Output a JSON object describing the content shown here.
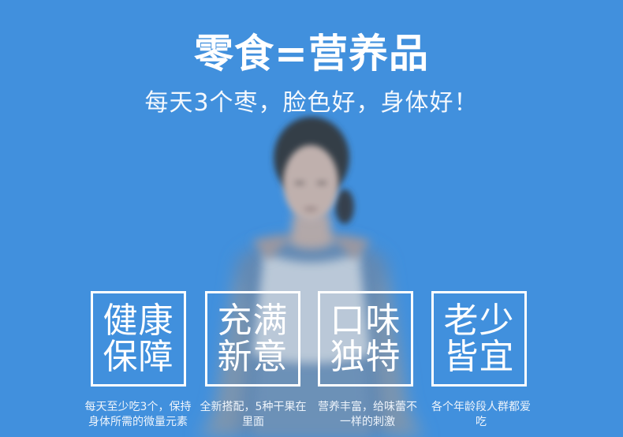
{
  "headline": {
    "title": "零食=营养品",
    "subtitle": "每天3个枣，脸色好，身体好！"
  },
  "features": [
    {
      "line1": "健康",
      "line2": "保障",
      "description": "每天至少吃3个，保持身体所需的微量元素"
    },
    {
      "line1": "充满",
      "line2": "新意",
      "description": "全新搭配，5种干果在里面"
    },
    {
      "line1": "口味",
      "line2": "独特",
      "description": "营养丰富，给味蕾不一样的刺激"
    },
    {
      "line1": "老少",
      "line2": "皆宜",
      "description": "各个年龄段人群都爱吃"
    }
  ],
  "colors": {
    "background": "#4190dd",
    "text": "#ffffff"
  }
}
